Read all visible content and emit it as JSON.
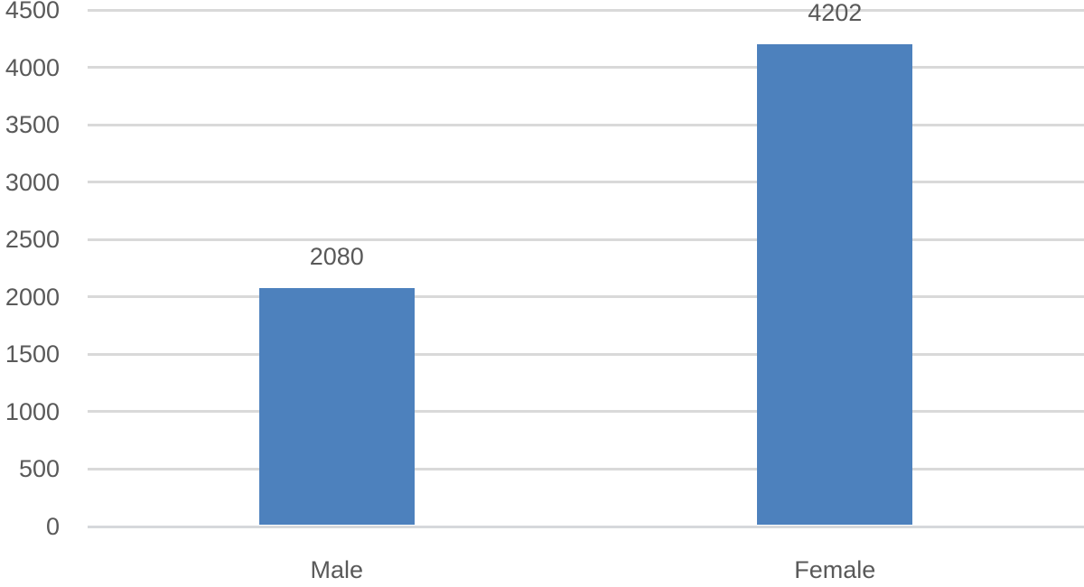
{
  "chart_data": {
    "type": "bar",
    "title": "",
    "xlabel": "",
    "ylabel": "",
    "categories": [
      "Male",
      "Female"
    ],
    "values": [
      2080,
      4202
    ],
    "data_labels": [
      "2080",
      "4202"
    ],
    "ylim": [
      0,
      4500
    ],
    "ytick_step": 500,
    "ytick_labels": [
      "0",
      "500",
      "1000",
      "1500",
      "2000",
      "2500",
      "3000",
      "3500",
      "4000",
      "4500"
    ],
    "grid": "horizontal",
    "legend": "none",
    "colors": {
      "bar": "#4D81BD",
      "gridline": "#D9D9D9",
      "axis_line": "#D6D8DB",
      "text": "#595959",
      "background": "#FFFFFF"
    }
  }
}
